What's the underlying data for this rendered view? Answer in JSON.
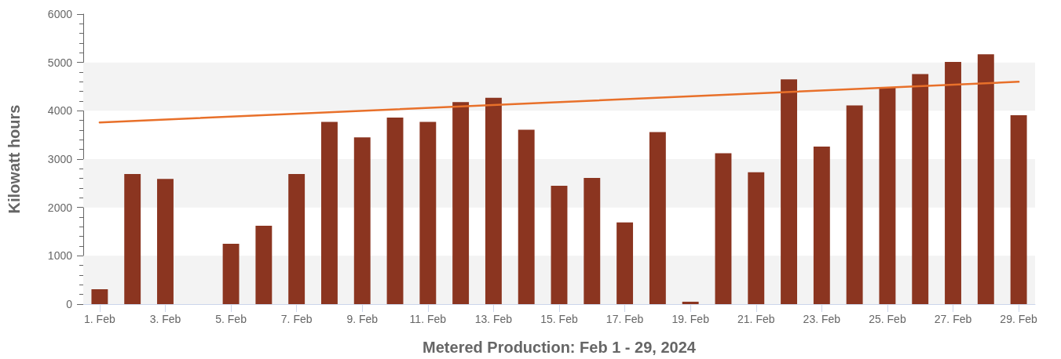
{
  "chart_data": {
    "type": "bar",
    "xlabel": "Metered Production: Feb 1 - 29, 2024",
    "ylabel": "Kilowatt hours",
    "categories": [
      "1. Feb",
      null,
      "3. Feb",
      null,
      "5. Feb",
      null,
      "7. Feb",
      null,
      "9. Feb",
      null,
      "11. Feb",
      null,
      "13. Feb",
      null,
      "15. Feb",
      null,
      "17. Feb",
      null,
      "19. Feb",
      null,
      "21. Feb",
      null,
      "23. Feb",
      null,
      "25. Feb",
      null,
      "27. Feb",
      null,
      "29. Feb"
    ],
    "series": [
      {
        "color": "#8b3520",
        "values": [
          310,
          2690,
          2590,
          null,
          1250,
          1620,
          2690,
          3770,
          3450,
          3860,
          3770,
          4180,
          4270,
          3610,
          2450,
          2610,
          1690,
          3560,
          50,
          3120,
          2730,
          4650,
          3260,
          4110,
          4480,
          4760,
          5010,
          5170,
          3910
        ]
      },
      {
        "type": "line",
        "color": "#e8702a",
        "x": [
          "1. Feb",
          "29. Feb"
        ],
        "values": [
          3760,
          4600
        ]
      }
    ],
    "ylim": [
      0,
      6000
    ],
    "yticks": [
      0,
      1000,
      2000,
      3000,
      4000,
      5000,
      6000
    ],
    "bands": [
      {
        "axis": "y",
        "from": 0,
        "to": 1000,
        "color": "#f3f3f3"
      },
      {
        "axis": "y",
        "from": 2000,
        "to": 3000,
        "color": "#f3f3f3"
      },
      {
        "axis": "y",
        "from": 4000,
        "to": 5000,
        "color": "#f3f3f3"
      }
    ],
    "marker": "none",
    "line_style": "solid"
  }
}
